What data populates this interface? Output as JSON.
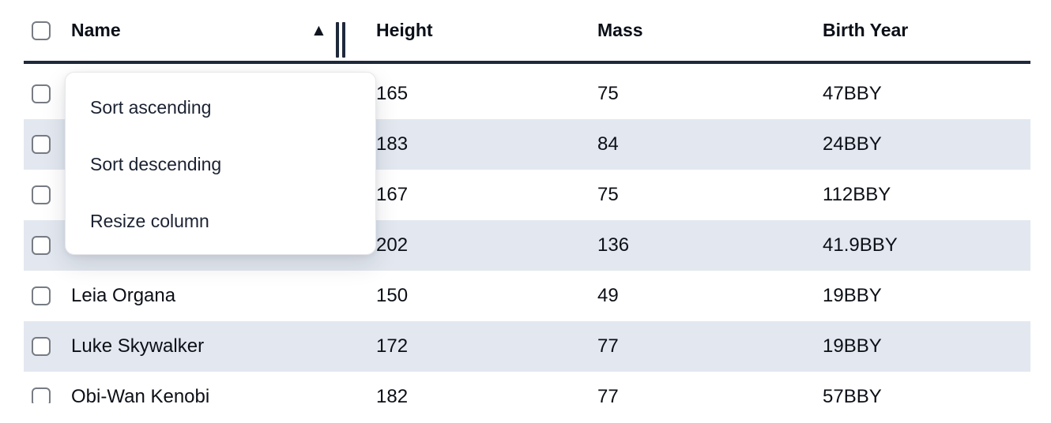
{
  "header": {
    "columns": [
      {
        "label": "Name",
        "sorted": "ascending"
      },
      {
        "label": "Height"
      },
      {
        "label": "Mass"
      },
      {
        "label": "Birth Year"
      }
    ],
    "sort_icon": "▲",
    "select_all_checked": false
  },
  "menu": {
    "items": [
      {
        "label": "Sort ascending"
      },
      {
        "label": "Sort descending"
      },
      {
        "label": "Resize column"
      }
    ]
  },
  "rows": [
    {
      "name": "",
      "height": "165",
      "mass": "75",
      "birth_year": "47BBY",
      "checked": false
    },
    {
      "name": "",
      "height": "183",
      "mass": "84",
      "birth_year": "24BBY",
      "checked": false
    },
    {
      "name": "",
      "height": "167",
      "mass": "75",
      "birth_year": "112BBY",
      "checked": false
    },
    {
      "name": "",
      "height": "202",
      "mass": "136",
      "birth_year": "41.9BBY",
      "checked": false
    },
    {
      "name": "Leia Organa",
      "height": "150",
      "mass": "49",
      "birth_year": "19BBY",
      "checked": false
    },
    {
      "name": "Luke Skywalker",
      "height": "172",
      "mass": "77",
      "birth_year": "19BBY",
      "checked": false
    },
    {
      "name": "Obi-Wan Kenobi",
      "height": "182",
      "mass": "77",
      "birth_year": "57BBY",
      "checked": false
    }
  ],
  "colors": {
    "header_border": "#1e293b",
    "row_stripe": "#e3e8f0",
    "text": "#0c0f16",
    "menu_text": "#1b2231",
    "checkbox_border": "#767b83"
  }
}
